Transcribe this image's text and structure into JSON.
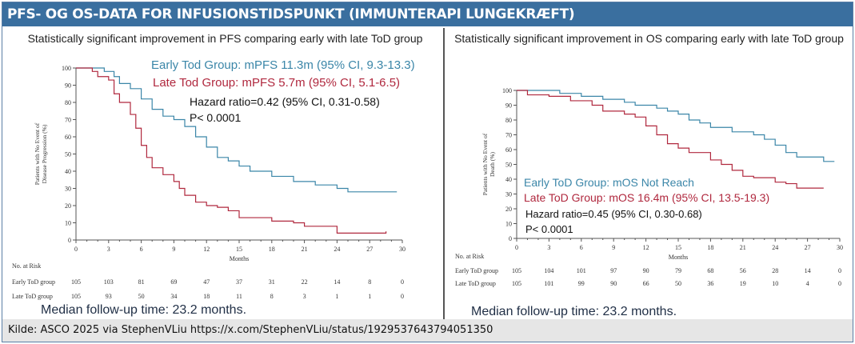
{
  "header": {
    "title": "PFS- OG OS-DATA FOR INFUSIONSTIDSPUNKT (IMMUNTERAPI LUNGEKRÆFT)"
  },
  "footer": {
    "source": "Kilde: ASCO 2025 via StephenVLiu https://x.com/StephenVLiu/status/1929537643794051350"
  },
  "colors": {
    "early": "#3b86a8",
    "late": "#b0283e",
    "header": "#3a6f9f"
  },
  "chart_data": [
    {
      "type": "line",
      "subtitle": "Statistically significant improvement in PFS comparing early with late ToD group",
      "ylabel": "Patients with No Event of Disease Progression (%)",
      "ylabel_lines": [
        "Patients with No Event of",
        "Disease Progression (%)"
      ],
      "xlabel": "Months",
      "xlim": [
        0,
        30
      ],
      "ylim": [
        0,
        100
      ],
      "xticks": [
        0,
        3,
        6,
        9,
        12,
        15,
        18,
        21,
        24,
        27,
        30
      ],
      "yticks": [
        0,
        10,
        20,
        30,
        40,
        50,
        60,
        70,
        80,
        90,
        100
      ],
      "annotations": {
        "early": "Early Tod Group: mPFS 11.3m (95% CI, 9.3-13.3)",
        "late": "Late Tod Group: mPFS 5.7m (95% CI, 5.1-6.5)",
        "hr": "Hazard ratio=0.42 (95% CI, 0.31-0.58)",
        "p": "P< 0.0001"
      },
      "series": [
        {
          "name": "Early ToD group",
          "color": "#3b86a8",
          "x": [
            0,
            2.6,
            3.5,
            4,
            5,
            6,
            7,
            8,
            9,
            10,
            11,
            12,
            13,
            14,
            15,
            16,
            18,
            20,
            22,
            24,
            25,
            29.5
          ],
          "y": [
            100,
            98,
            95,
            91,
            88,
            82,
            76,
            72,
            70,
            66,
            60,
            54,
            48,
            46,
            43,
            40,
            37,
            34,
            32,
            30,
            28,
            28
          ]
        },
        {
          "name": "Late ToD group",
          "color": "#b0283e",
          "x": [
            0,
            1.5,
            2,
            3,
            3.5,
            4,
            5,
            5.5,
            6,
            6.5,
            7,
            8,
            9,
            9.5,
            10,
            11,
            12,
            13,
            14,
            15,
            17,
            18,
            20,
            21,
            23,
            24,
            28.5
          ],
          "y": [
            100,
            98,
            95,
            93,
            85,
            80,
            73,
            65,
            55,
            48,
            42,
            38,
            34,
            30,
            26,
            22,
            20,
            19,
            17,
            13,
            13,
            11,
            10,
            8,
            8,
            4,
            5
          ]
        }
      ],
      "risk": {
        "title": "No. at Risk",
        "rows": [
          {
            "label": "Early ToD group",
            "values": [
              105,
              103,
              81,
              69,
              47,
              37,
              31,
              22,
              14,
              8,
              0
            ]
          },
          {
            "label": "Late ToD group",
            "values": [
              105,
              93,
              50,
              34,
              18,
              11,
              8,
              3,
              1,
              1,
              0
            ]
          }
        ]
      },
      "followup": "Median follow-up time: 23.2 months."
    },
    {
      "type": "line",
      "subtitle": "Statistically significant improvement in OS comparing early with late ToD group",
      "ylabel": "Patients with No Event of Death (%)",
      "ylabel_lines": [
        "Patients with No Event of",
        "Death (%)"
      ],
      "xlabel": "Months",
      "xlim": [
        0,
        30
      ],
      "ylim": [
        0,
        100
      ],
      "xticks": [
        0,
        3,
        6,
        9,
        12,
        15,
        18,
        21,
        24,
        27,
        30
      ],
      "yticks": [
        0,
        10,
        20,
        30,
        40,
        50,
        60,
        70,
        80,
        90,
        100
      ],
      "annotations": {
        "early": "Early ToD Group: mOS Not Reach",
        "late": "Late ToD Group: mOS 16.4m (95% CI, 13.5-19.3)",
        "hr": "Hazard ratio=0.45 (95% CI, 0.30-0.68)",
        "p": "P< 0.0001"
      },
      "series": [
        {
          "name": "Early ToD group",
          "color": "#3b86a8",
          "x": [
            0,
            4,
            6,
            8,
            10,
            11,
            13,
            14,
            15,
            16,
            17,
            18,
            20,
            22,
            23,
            24,
            25,
            26,
            28.5,
            29.5
          ],
          "y": [
            100,
            98,
            96,
            94,
            92,
            90,
            88,
            86,
            84,
            80,
            78,
            75,
            72,
            70,
            67,
            63,
            58,
            55,
            52,
            52
          ]
        },
        {
          "name": "Late ToD group",
          "color": "#b0283e",
          "x": [
            0,
            1,
            3,
            5,
            7,
            8,
            10,
            11,
            12,
            13,
            14,
            15,
            16,
            18,
            19,
            20,
            21,
            22,
            24,
            25,
            26,
            28.5
          ],
          "y": [
            100,
            97,
            96,
            93,
            90,
            86,
            84,
            82,
            76,
            70,
            64,
            61,
            58,
            53,
            50,
            46,
            42,
            41,
            38,
            37,
            34,
            34
          ]
        }
      ],
      "risk": {
        "title": "No. at Risk",
        "rows": [
          {
            "label": "Early ToD group",
            "values": [
              105,
              104,
              101,
              97,
              90,
              79,
              68,
              56,
              28,
              14,
              0
            ]
          },
          {
            "label": "Late ToD group",
            "values": [
              105,
              101,
              99,
              90,
              66,
              50,
              36,
              19,
              10,
              4,
              0
            ]
          }
        ]
      },
      "followup": "Median follow-up time: 23.2 months."
    }
  ]
}
